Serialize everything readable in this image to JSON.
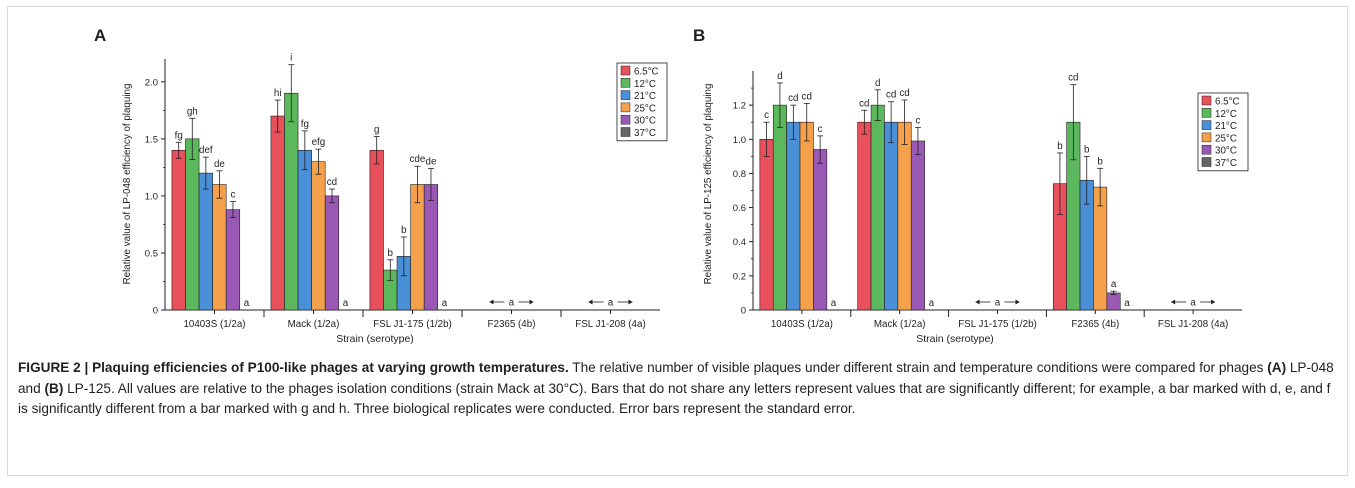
{
  "chart_data": [
    {
      "type": "bar",
      "panel_label": "A",
      "ylabel": "Relative value of LP-048 efficiency of plaquing",
      "xlabel": "Strain (serotype)",
      "ylim": [
        0,
        2.2
      ],
      "yticks": [
        "0",
        "0.5",
        "1.0",
        "1.5",
        "2.0"
      ],
      "ytick_values": [
        0,
        0.5,
        1.0,
        1.5,
        2.0
      ],
      "categories": [
        "10403S (1/2a)",
        "Mack (1/2a)",
        "FSL J1-175 (1/2b)",
        "F2365 (4b)",
        "FSL J1-208 (4a)"
      ],
      "legend_position": "top-right",
      "series": [
        {
          "name": "6.5°C",
          "color": "#e8505b",
          "values": [
            1.4,
            1.7,
            1.4,
            null,
            null
          ],
          "errors": [
            0.07,
            0.14,
            0.12,
            null,
            null
          ],
          "letters": [
            "fg",
            "hi",
            "g",
            "",
            ""
          ]
        },
        {
          "name": "12°C",
          "color": "#5cb85c",
          "values": [
            1.5,
            1.9,
            0.35,
            null,
            null
          ],
          "errors": [
            0.18,
            0.25,
            0.09,
            null,
            null
          ],
          "letters": [
            "gh",
            "i",
            "b",
            "",
            ""
          ]
        },
        {
          "name": "21°C",
          "color": "#4a90d9",
          "values": [
            1.2,
            1.4,
            0.47,
            null,
            null
          ],
          "errors": [
            0.14,
            0.17,
            0.17,
            null,
            null
          ],
          "letters": [
            "def",
            "fg",
            "b",
            "",
            ""
          ]
        },
        {
          "name": "25°C",
          "color": "#f5a04a",
          "values": [
            1.1,
            1.3,
            1.1,
            null,
            null
          ],
          "errors": [
            0.12,
            0.11,
            0.16,
            null,
            null
          ],
          "letters": [
            "de",
            "efg",
            "cde",
            "",
            ""
          ]
        },
        {
          "name": "30°C",
          "color": "#9b59b6",
          "values": [
            0.88,
            1.0,
            1.1,
            null,
            null
          ],
          "errors": [
            0.07,
            0.06,
            0.14,
            null,
            null
          ],
          "letters": [
            "c",
            "cd",
            "de",
            "",
            ""
          ]
        },
        {
          "name": "37°C",
          "color": "#666666",
          "values": [
            0,
            0,
            0,
            null,
            null
          ],
          "errors": [
            null,
            null,
            null,
            null,
            null
          ],
          "letters": [
            "a",
            "a",
            "a",
            "",
            ""
          ]
        }
      ],
      "range_annotations": [
        {
          "category": "F2365 (4b)",
          "label": "a"
        },
        {
          "category": "FSL J1-208 (4a)",
          "label": "a"
        }
      ]
    },
    {
      "type": "bar",
      "panel_label": "B",
      "ylabel": "Relative value of LP-125 efficiency of plaquing",
      "xlabel": "Strain (serotype)",
      "ylim": [
        0,
        1.4
      ],
      "yticks": [
        "0",
        "0.2",
        "0.4",
        "0.6",
        "0.8",
        "1.0",
        "1.2"
      ],
      "ytick_values": [
        0,
        0.2,
        0.4,
        0.6,
        0.8,
        1.0,
        1.2
      ],
      "categories": [
        "10403S (1/2a)",
        "Mack (1/2a)",
        "FSL J1-175 (1/2b)",
        "F2365 (4b)",
        "FSL J1-208 (4a)"
      ],
      "legend_position": "top-right",
      "series": [
        {
          "name": "6.5°C",
          "color": "#e8505b",
          "values": [
            1.0,
            1.1,
            null,
            0.74,
            null
          ],
          "errors": [
            0.1,
            0.07,
            null,
            0.18,
            null
          ],
          "letters": [
            "c",
            "cd",
            "",
            "b",
            ""
          ]
        },
        {
          "name": "12°C",
          "color": "#5cb85c",
          "values": [
            1.2,
            1.2,
            null,
            1.1,
            null
          ],
          "errors": [
            0.13,
            0.09,
            null,
            0.22,
            null
          ],
          "letters": [
            "d",
            "d",
            "",
            "cd",
            ""
          ]
        },
        {
          "name": "21°C",
          "color": "#4a90d9",
          "values": [
            1.1,
            1.1,
            null,
            0.76,
            null
          ],
          "errors": [
            0.1,
            0.12,
            null,
            0.14,
            null
          ],
          "letters": [
            "cd",
            "cd",
            "",
            "b",
            ""
          ]
        },
        {
          "name": "25°C",
          "color": "#f5a04a",
          "values": [
            1.1,
            1.1,
            null,
            0.72,
            null
          ],
          "errors": [
            0.11,
            0.13,
            null,
            0.11,
            null
          ],
          "letters": [
            "cd",
            "cd",
            "",
            "b",
            ""
          ]
        },
        {
          "name": "30°C",
          "color": "#9b59b6",
          "values": [
            0.94,
            0.99,
            null,
            0.1,
            null
          ],
          "errors": [
            0.08,
            0.08,
            null,
            0.01,
            null
          ],
          "letters": [
            "c",
            "c",
            "",
            "a",
            ""
          ]
        },
        {
          "name": "37°C",
          "color": "#666666",
          "values": [
            0,
            0,
            null,
            0,
            null
          ],
          "errors": [
            null,
            null,
            null,
            null,
            null
          ],
          "letters": [
            "a",
            "a",
            "",
            "a",
            ""
          ]
        }
      ],
      "range_annotations": [
        {
          "category": "FSL J1-175 (1/2b)",
          "label": "a"
        },
        {
          "category": "FSL J1-208 (4a)",
          "label": "a"
        }
      ]
    }
  ],
  "caption": {
    "figure_label": "FIGURE 2 | ",
    "title": "Plaquing efficiencies of P100-like phages at varying growth temperatures.",
    "text_1": " The relative number of visible plaques under different strain and temperature conditions were compared for phages ",
    "phage_a_label": "(A)",
    "text_2": " LP-048 and ",
    "phage_b_label": "(B)",
    "text_3": " LP-125. All values are relative to the phages isolation conditions (strain Mack at 30°C). Bars that do not share any letters represent values that are significantly different; for example, a bar marked with d, e, and f is significantly different from a bar marked with g and h. Three biological replicates were conducted. Error bars represent the standard error."
  }
}
